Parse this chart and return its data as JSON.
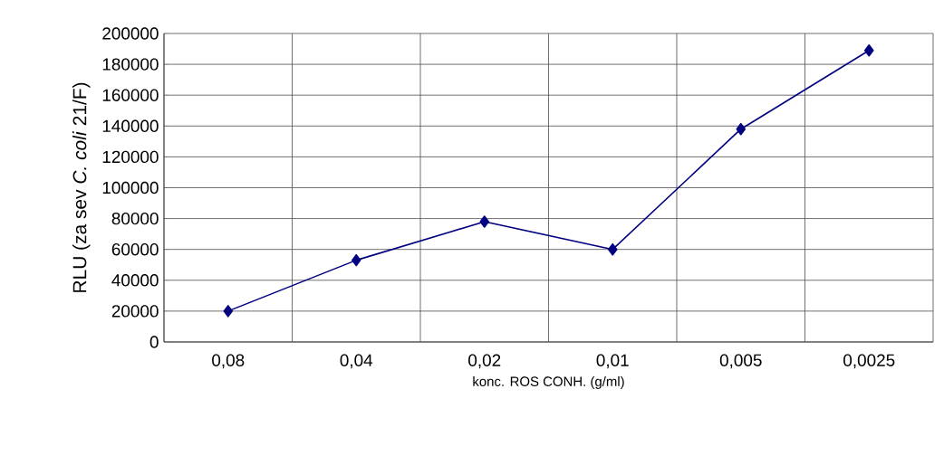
{
  "chart_data": {
    "type": "line",
    "xlabel": "konc. ROS CONH. (g/ml)",
    "ylabel": "RLU (za sev *C. coli* 21/F)",
    "categories": [
      "0,08",
      "0,04",
      "0,02",
      "0,01",
      "0,005",
      "0,0025"
    ],
    "series": [
      {
        "color": "#000080",
        "values": [
          20000,
          53000,
          78000,
          60000,
          138000,
          189000
        ]
      }
    ],
    "ylim": [
      0,
      200000
    ],
    "yticks": [
      0,
      20000,
      40000,
      60000,
      80000,
      100000,
      120000,
      140000,
      160000,
      180000,
      200000
    ],
    "grid": true,
    "marker": "diamond",
    "line_style": "solid"
  }
}
